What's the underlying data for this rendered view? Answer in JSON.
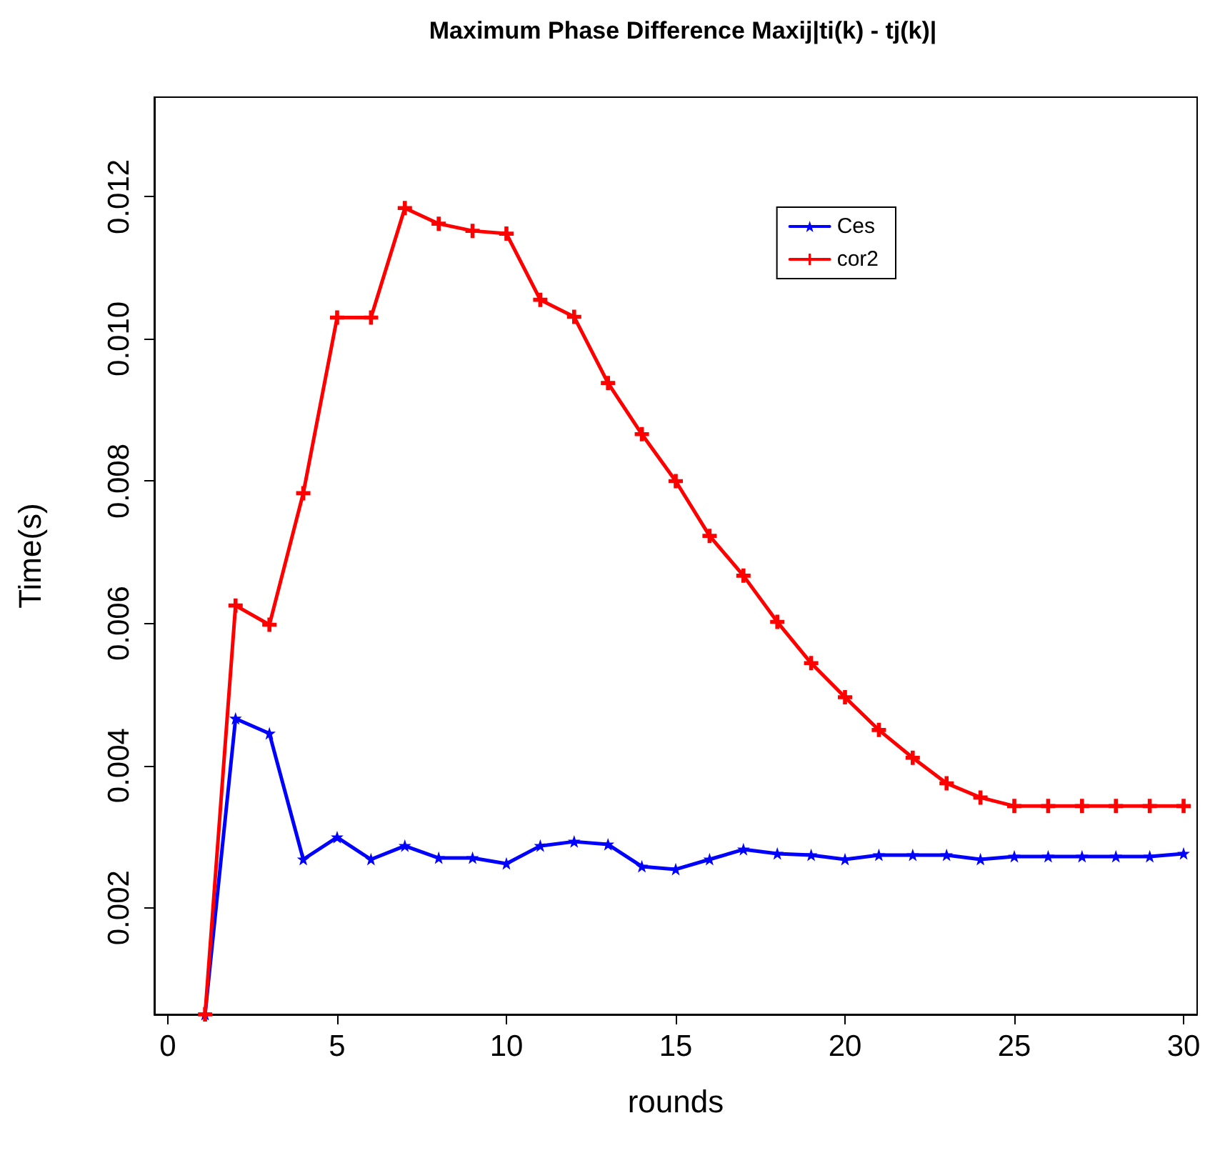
{
  "chart_data": {
    "type": "line",
    "title": "Maximum Phase Difference Maxij|ti(k) - tj(k)|",
    "xlabel": "rounds",
    "ylabel": "Time(s)",
    "x": [
      1.1,
      2,
      3,
      4,
      5,
      6,
      7,
      8,
      9,
      10,
      11,
      12,
      13,
      14,
      15,
      16,
      17,
      18,
      19,
      20,
      21,
      22,
      23,
      24,
      25,
      26,
      27,
      28,
      29,
      30
    ],
    "series": [
      {
        "name": "Ces",
        "color": "#0000ff",
        "marker": "star",
        "values": [
          0.0005,
          0.00466,
          0.00445,
          0.00268,
          0.00299,
          0.00268,
          0.00287,
          0.0027,
          0.0027,
          0.00262,
          0.00287,
          0.00293,
          0.00289,
          0.00258,
          0.00254,
          0.00268,
          0.00282,
          0.00276,
          0.00274,
          0.00268,
          0.00274,
          0.00274,
          0.00274,
          0.00268,
          0.00272,
          0.00272,
          0.00272,
          0.00272,
          0.00272,
          0.00276
        ]
      },
      {
        "name": "cor2",
        "color": "#ff0000",
        "marker": "cross",
        "values": [
          0.0005,
          0.00625,
          0.00598,
          0.00783,
          0.0103,
          0.0103,
          0.01184,
          0.01162,
          0.01152,
          0.01148,
          0.01055,
          0.01031,
          0.00938,
          0.00866,
          0.008,
          0.00723,
          0.00667,
          0.00602,
          0.00544,
          0.00496,
          0.0045,
          0.00411,
          0.00375,
          0.00355,
          0.00343,
          0.00343,
          0.00343,
          0.00343,
          0.00343,
          0.00343
        ]
      }
    ],
    "xlim": [
      -0.4,
      30.4
    ],
    "xticks": [
      0,
      5,
      10,
      15,
      20,
      25,
      30
    ],
    "ylim": [
      0.0005,
      0.0134
    ],
    "yticks": [
      0.002,
      0.004,
      0.006,
      0.008,
      {
        "value": 0.01,
        "label": "0.010"
      },
      0.012
    ],
    "grid": false,
    "legend": "top right",
    "line_style": "solid"
  }
}
